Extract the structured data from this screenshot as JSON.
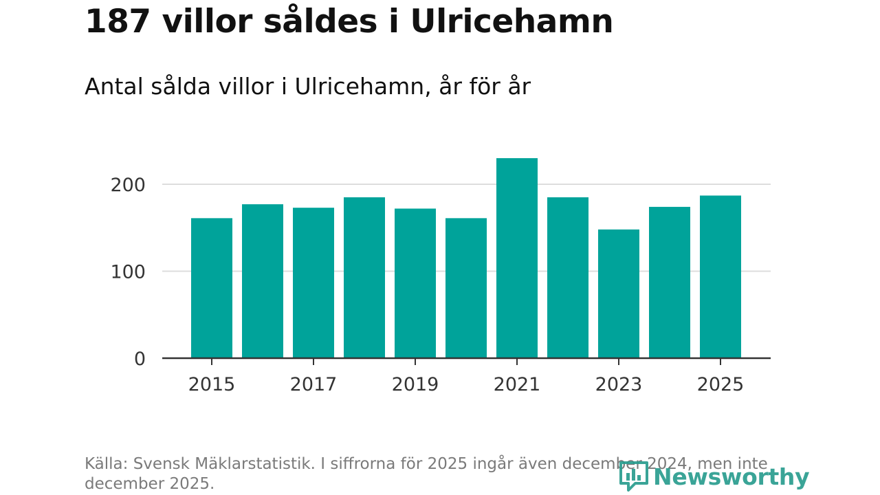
{
  "header": {
    "title": "187 villor såldes i Ulricehamn",
    "subtitle": "Antal sålda villor i Ulricehamn, år för år"
  },
  "footer": {
    "source": "Källa: Svensk Mäklarstatistik. I siffrorna för 2025 ingår även december 2024, men inte december 2025.",
    "brand": "Newsworthy",
    "brand_icon": "bar-chart-logo-icon"
  },
  "colors": {
    "bar": "#00a39a",
    "grid": "#dddddd",
    "axis": "#333333",
    "brand": "#2a9d8f"
  },
  "chart_data": {
    "type": "bar",
    "title": "187 villor såldes i Ulricehamn",
    "subtitle": "Antal sålda villor i Ulricehamn, år för år",
    "xlabel": "",
    "ylabel": "",
    "categories": [
      "2015",
      "2016",
      "2017",
      "2018",
      "2019",
      "2020",
      "2021",
      "2022",
      "2023",
      "2024",
      "2025"
    ],
    "values": [
      161,
      177,
      173,
      185,
      172,
      161,
      230,
      185,
      148,
      174,
      187
    ],
    "x_tick_labels": [
      "2015",
      "2017",
      "2019",
      "2021",
      "2023",
      "2025"
    ],
    "y_ticks": [
      0,
      100,
      200
    ],
    "ylim": [
      0,
      240
    ],
    "grid": true,
    "legend": "none"
  }
}
